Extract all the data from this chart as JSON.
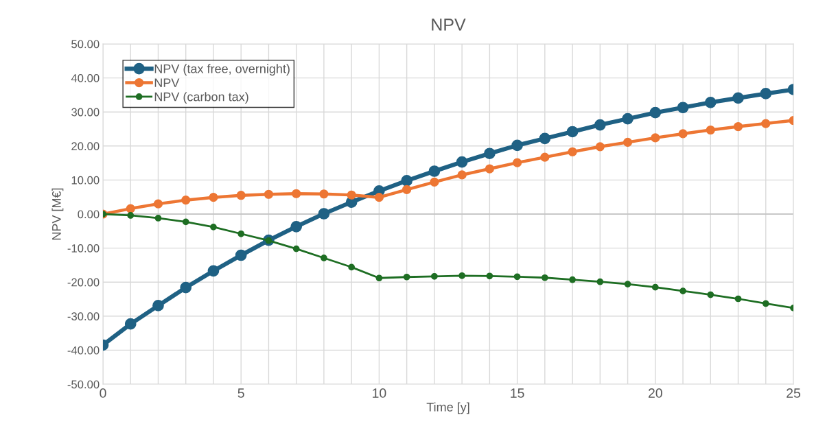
{
  "chart_data": {
    "type": "line",
    "title": "NPV",
    "xlabel": "Time [y]",
    "ylabel": "NPV [M€]",
    "x": [
      0,
      1,
      2,
      3,
      4,
      5,
      6,
      7,
      8,
      9,
      10,
      11,
      12,
      13,
      14,
      15,
      16,
      17,
      18,
      19,
      20,
      21,
      22,
      23,
      24,
      25
    ],
    "series": [
      {
        "name": "NPV (tax free, overnight)",
        "color": "#1f6184",
        "values": [
          -38.5,
          -32.3,
          -26.9,
          -21.6,
          -16.7,
          -12.1,
          -7.7,
          -3.7,
          0.1,
          3.5,
          6.8,
          9.8,
          12.6,
          15.3,
          17.8,
          20.2,
          22.2,
          24.2,
          26.2,
          28.0,
          29.8,
          31.3,
          32.8,
          34.1,
          35.4,
          36.6
        ]
      },
      {
        "name": "NPV",
        "color": "#ed7633",
        "values": [
          0,
          1.6,
          3.0,
          4.1,
          4.9,
          5.5,
          5.8,
          6.0,
          5.9,
          5.6,
          4.9,
          7.2,
          9.4,
          11.5,
          13.3,
          15.1,
          16.7,
          18.3,
          19.8,
          21.1,
          22.4,
          23.6,
          24.7,
          25.7,
          26.6,
          27.5
        ]
      },
      {
        "name": "NPV (carbon tax)",
        "color": "#1e6e23",
        "values": [
          0,
          -0.4,
          -1.2,
          -2.3,
          -3.8,
          -5.8,
          -7.8,
          -10.2,
          -12.9,
          -15.6,
          -18.8,
          -18.5,
          -18.3,
          -18.1,
          -18.2,
          -18.4,
          -18.7,
          -19.3,
          -19.9,
          -20.6,
          -21.5,
          -22.6,
          -23.7,
          -24.9,
          -26.3,
          -27.6
        ]
      }
    ],
    "xlim": [
      0,
      25
    ],
    "xticks": [
      0,
      {
        "value": 1,
        "label": null
      },
      {
        "value": 2,
        "label": null
      },
      {
        "value": 3,
        "label": null
      },
      {
        "value": 4,
        "label": null
      },
      5,
      {
        "value": 6,
        "label": null
      },
      {
        "value": 7,
        "label": null
      },
      {
        "value": 8,
        "label": null
      },
      {
        "value": 9,
        "label": null
      },
      10,
      {
        "value": 11,
        "label": null
      },
      {
        "value": 12,
        "label": null
      },
      {
        "value": 13,
        "label": null
      },
      {
        "value": 14,
        "label": null
      },
      15,
      {
        "value": 16,
        "label": null
      },
      {
        "value": 17,
        "label": null
      },
      {
        "value": 18,
        "label": null
      },
      {
        "value": 19,
        "label": null
      },
      20,
      {
        "value": 21,
        "label": null
      },
      {
        "value": 22,
        "label": null
      },
      {
        "value": 23,
        "label": null
      },
      {
        "value": 24,
        "label": null
      },
      25
    ],
    "ylim": [
      -50,
      50
    ],
    "yticks": [
      {
        "value": -50,
        "label": "-50.00"
      },
      {
        "value": -40,
        "label": "-40.00"
      },
      {
        "value": -30,
        "label": "-30.00"
      },
      {
        "value": -20,
        "label": "-20.00"
      },
      {
        "value": -10,
        "label": "-10.00"
      },
      {
        "value": 0,
        "label": "0.00"
      },
      {
        "value": 10,
        "label": "10.00"
      },
      {
        "value": 20,
        "label": "20.00"
      },
      {
        "value": 30,
        "label": "30.00"
      },
      {
        "value": 40,
        "label": "40.00"
      },
      {
        "value": 50,
        "label": "50.00"
      }
    ],
    "grid": true,
    "legend": "top left",
    "marker": "circle",
    "line_style": "solid"
  }
}
